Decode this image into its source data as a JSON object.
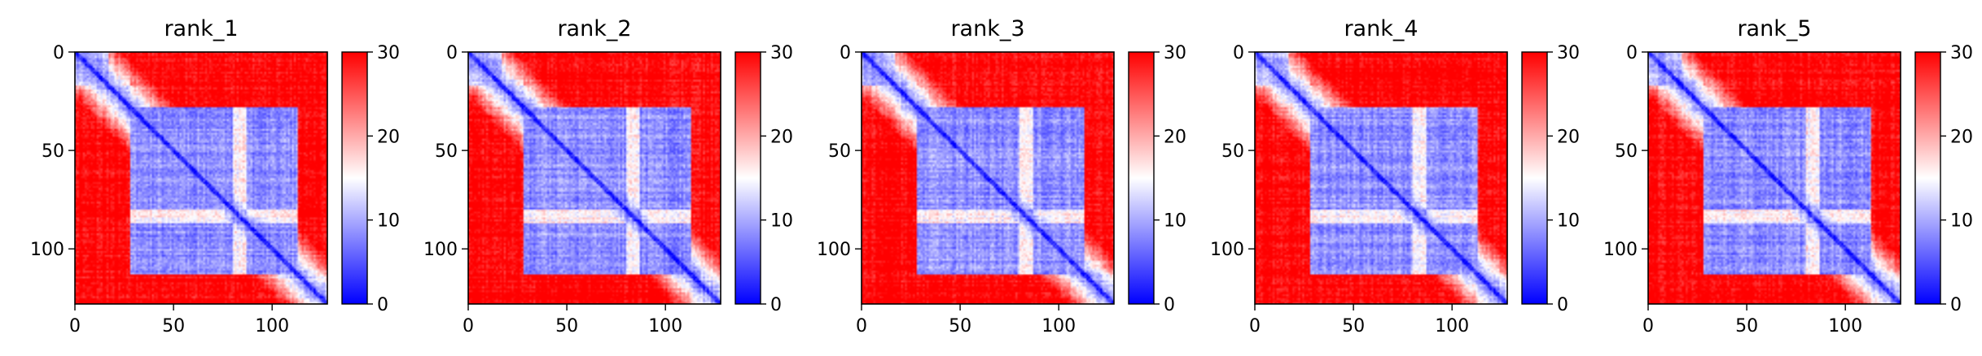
{
  "chart_data": [
    {
      "type": "heatmap",
      "title": "rank_1",
      "xlabel": "",
      "ylabel": "",
      "x_range": [
        0,
        128
      ],
      "y_range": [
        0,
        128
      ],
      "y_inverted": true,
      "x_ticks": [
        0,
        50,
        100
      ],
      "y_ticks": [
        0,
        50,
        100
      ],
      "colorbar": {
        "range": [
          0,
          30
        ],
        "ticks": [
          0,
          10,
          20,
          30
        ]
      },
      "seed": 11
    },
    {
      "type": "heatmap",
      "title": "rank_2",
      "xlabel": "",
      "ylabel": "",
      "x_range": [
        0,
        128
      ],
      "y_range": [
        0,
        128
      ],
      "y_inverted": true,
      "x_ticks": [
        0,
        50,
        100
      ],
      "y_ticks": [
        0,
        50,
        100
      ],
      "colorbar": {
        "range": [
          0,
          30
        ],
        "ticks": [
          0,
          10,
          20,
          30
        ]
      },
      "seed": 23
    },
    {
      "type": "heatmap",
      "title": "rank_3",
      "xlabel": "",
      "ylabel": "",
      "x_range": [
        0,
        128
      ],
      "y_range": [
        0,
        128
      ],
      "y_inverted": true,
      "x_ticks": [
        0,
        50,
        100
      ],
      "y_ticks": [
        0,
        50,
        100
      ],
      "colorbar": {
        "range": [
          0,
          30
        ],
        "ticks": [
          0,
          10,
          20,
          30
        ]
      },
      "seed": 37
    },
    {
      "type": "heatmap",
      "title": "rank_4",
      "xlabel": "",
      "ylabel": "",
      "x_range": [
        0,
        128
      ],
      "y_range": [
        0,
        128
      ],
      "y_inverted": true,
      "x_ticks": [
        0,
        50,
        100
      ],
      "y_ticks": [
        0,
        50,
        100
      ],
      "colorbar": {
        "range": [
          0,
          30
        ],
        "ticks": [
          0,
          10,
          20,
          30
        ]
      },
      "seed": 41
    },
    {
      "type": "heatmap",
      "title": "rank_5",
      "xlabel": "",
      "ylabel": "",
      "x_range": [
        0,
        128
      ],
      "y_range": [
        0,
        128
      ],
      "y_inverted": true,
      "x_ticks": [
        0,
        50,
        100
      ],
      "y_ticks": [
        0,
        50,
        100
      ],
      "colorbar": {
        "range": [
          0,
          30
        ],
        "ticks": [
          0,
          10,
          20,
          30
        ]
      },
      "seed": 59
    }
  ],
  "colormap": {
    "name": "bwr",
    "low": "#0000ff",
    "mid": "#ffffff",
    "high": "#ff0000"
  },
  "matrix_size": 128
}
